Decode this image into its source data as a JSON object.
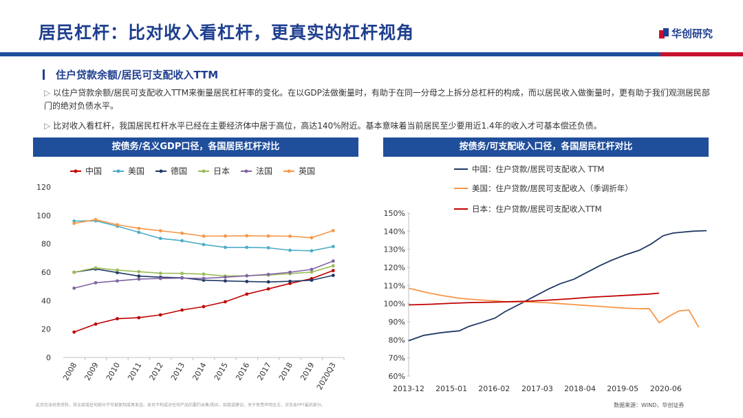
{
  "page": {
    "title": "居民杠杆：比对收入看杠杆，更真实的杠杆视角",
    "logo_text": "华创研究",
    "subheading": "住户贷款余额/居民可支配收入TTM",
    "bullets": [
      "以住户贷款余额/居民可支配收入TTM来衡量居民杠杆率的变化。在以GDP法做衡量时，有助于在同一分母之上拆分总杠杆的构成，而以居民收入做衡量时，更有助于我们观测居民部门的绝对负债水平。",
      "比对收入看杠杆，我国居民杠杆水平已经在主要经济体中居于高位，高达140%附近。基本意味着当前居民至少要用近1.4年的收入才可基本偿还负债。"
    ],
    "footnote": "此页包含机密资料，其全部或任何部分不可被复制或再发送。本页不构成对任何产品的要约出售/购买、招揽或建议。关于免责声明全文，详见本PPT最后部分。",
    "source": "数据来源：WIND，华创证券",
    "colors": {
      "brand_blue": "#1f4e9b",
      "brand_red": "#c8102e"
    }
  },
  "chart_data": [
    {
      "type": "line",
      "title": "按债务/名义GDP口径，各国居民杠杆对比",
      "categories": [
        "2008",
        "2009",
        "2010",
        "2011",
        "2012",
        "2013",
        "2014",
        "2015",
        "2016",
        "2017",
        "2018",
        "2019",
        "2020Q3"
      ],
      "ylim": [
        0,
        120
      ],
      "yticks": [
        "0",
        "20",
        "40",
        "60",
        "80",
        "100",
        "120"
      ],
      "xlabel": "",
      "ylabel": "",
      "legend_position": "top",
      "series": [
        {
          "name": "中国",
          "color": "#c00000",
          "values": [
            17.9,
            23.5,
            27.3,
            28.0,
            30.0,
            33.4,
            35.8,
            39.2,
            44.6,
            48.3,
            52.1,
            55.5,
            61.2
          ]
        },
        {
          "name": "美国",
          "color": "#4bacc6",
          "values": [
            96.0,
            96.2,
            92.4,
            88.1,
            83.8,
            82.2,
            79.5,
            77.5,
            77.5,
            77.2,
            75.5,
            75.1,
            78.1
          ]
        },
        {
          "name": "德国",
          "color": "#1f3864",
          "values": [
            60.0,
            62.3,
            59.8,
            57.3,
            56.5,
            56.1,
            54.4,
            53.9,
            53.5,
            53.2,
            53.6,
            54.4,
            57.8
          ]
        },
        {
          "name": "日本",
          "color": "#9bbb59",
          "values": [
            60.0,
            63.1,
            61.5,
            60.4,
            59.3,
            59.2,
            58.7,
            57.3,
            57.6,
            58.0,
            59.0,
            60.1,
            64.5
          ]
        },
        {
          "name": "法国",
          "color": "#8064a2",
          "values": [
            48.8,
            52.6,
            53.9,
            55.2,
            55.6,
            55.9,
            55.7,
            56.5,
            57.5,
            58.5,
            60.0,
            62.0,
            67.9
          ]
        },
        {
          "name": "英国",
          "color": "#f79646",
          "values": [
            94.4,
            97.0,
            93.4,
            90.9,
            89.2,
            87.5,
            85.4,
            85.5,
            85.7,
            85.5,
            85.4,
            84.3,
            89.3
          ]
        }
      ]
    },
    {
      "type": "line",
      "title": "按债务/可支配收入口径，各国居民杠杆对比",
      "xlabels": [
        "2013-12",
        "2015-01",
        "2016-02",
        "2017-03",
        "2018-04",
        "2019-05",
        "2020-06"
      ],
      "yticks": [
        "60%",
        "70%",
        "80%",
        "90%",
        "100%",
        "110%",
        "120%",
        "130%",
        "140%",
        "150%"
      ],
      "ylim": [
        60,
        150
      ],
      "x_range": [
        2013.92,
        2021.5
      ],
      "xlabel": "",
      "ylabel": "",
      "legend_position": "top-left",
      "series": [
        {
          "name": "中国：住户贷款/居民可支配收入 TTM",
          "color": "#1f3864",
          "x": [
            2013.92,
            2014.3,
            2014.75,
            2015.2,
            2015.45,
            2015.75,
            2016.1,
            2016.35,
            2016.75,
            2017.1,
            2017.45,
            2017.75,
            2018.1,
            2018.4,
            2018.75,
            2019.05,
            2019.4,
            2019.75,
            2020.05,
            2020.35,
            2020.6,
            2020.85,
            2021.1,
            2021.45
          ],
          "values": [
            79.5,
            82.5,
            84.0,
            85.0,
            87.5,
            89.5,
            92.0,
            95.5,
            100.0,
            104.0,
            108.0,
            111.0,
            113.5,
            117.0,
            121.0,
            124.0,
            127.0,
            129.5,
            133.0,
            137.5,
            139.0,
            139.5,
            140.0,
            140.3
          ]
        },
        {
          "name": "美国：住户贷款/居民可支配收入（季调折年）",
          "color": "#f79646",
          "x": [
            2013.92,
            2014.3,
            2014.75,
            2015.2,
            2015.45,
            2015.75,
            2016.1,
            2016.4,
            2016.75,
            2017.1,
            2017.45,
            2017.75,
            2018.1,
            2018.4,
            2018.75,
            2019.05,
            2019.4,
            2019.75,
            2020.0,
            2020.25,
            2020.5,
            2020.75,
            2021.0,
            2021.25
          ],
          "values": [
            108.5,
            106.5,
            104.5,
            103.0,
            102.5,
            102.0,
            101.5,
            101.0,
            101.0,
            100.8,
            100.5,
            100.0,
            99.5,
            99.0,
            98.5,
            98.0,
            97.5,
            97.2,
            97.3,
            89.5,
            93.0,
            96.0,
            96.5,
            87.0
          ]
        },
        {
          "name": "日本：住户贷款/居民可支配收入TTM",
          "color": "#c00000",
          "x": [
            2013.92,
            2014.5,
            2015.0,
            2015.5,
            2016.0,
            2016.5,
            2017.0,
            2017.5,
            2018.0,
            2018.5,
            2019.0,
            2019.5,
            2020.0,
            2020.25
          ],
          "values": [
            99.3,
            99.7,
            100.2,
            100.6,
            100.8,
            101.1,
            101.4,
            102.0,
            102.7,
            103.5,
            104.1,
            104.7,
            105.3,
            105.8
          ]
        }
      ]
    }
  ]
}
